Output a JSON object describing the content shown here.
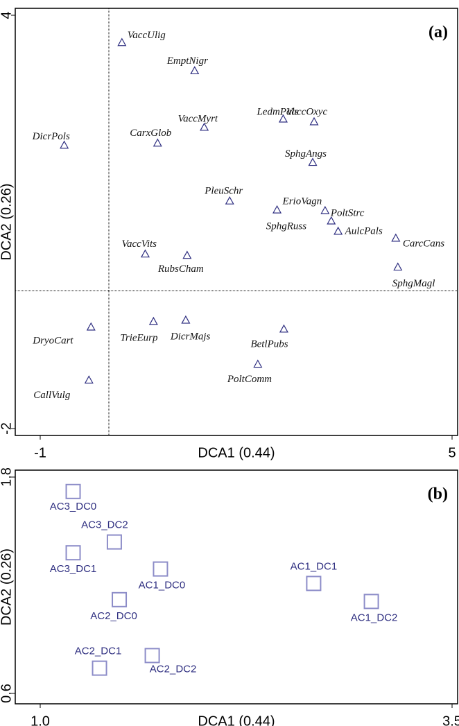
{
  "chart_data": [
    {
      "type": "scatter",
      "annotation": "(a)",
      "xlabel": "DCA1 (0.44)",
      "ylabel": "DCA2 (0.26)",
      "xlim": [
        -1,
        5
      ],
      "ylim": [
        -2,
        4
      ],
      "xticks": [
        -1,
        5
      ],
      "yticks": [
        -2,
        4
      ],
      "marker": "triangle",
      "color": "#2e2e80",
      "labels": [
        "VaccUlig",
        "EmptNigr",
        "VaccMyrt",
        "CarxGlob",
        "DicrPols",
        "VaccOxyc",
        "LedmPals",
        "SphgAngs",
        "PleuSchr",
        "ErioVagn",
        "PoltStrc",
        "SphgRuss",
        "AulcPals",
        "CarcCans",
        "SphgMagl",
        "VaccVits",
        "RubsCham",
        "DryoCart",
        "TrieEurp",
        "DicrMajs",
        "BetlPubs",
        "PoltComm",
        "CallVulg"
      ],
      "x": [
        0.19,
        1.25,
        1.39,
        0.71,
        -0.65,
        2.99,
        2.54,
        2.97,
        1.76,
        2.45,
        3.15,
        3.24,
        3.34,
        4.18,
        4.21,
        0.53,
        1.14,
        -0.26,
        0.65,
        1.12,
        2.55,
        2.17,
        -0.29
      ],
      "values": [
        3.6,
        3.19,
        2.37,
        2.14,
        2.11,
        2.45,
        2.49,
        1.86,
        1.3,
        1.17,
        1.16,
        1.01,
        0.86,
        0.76,
        0.34,
        0.53,
        0.51,
        -0.53,
        -0.45,
        -0.43,
        -0.56,
        -1.07,
        -1.3
      ]
    },
    {
      "type": "scatter",
      "annotation": "(b)",
      "xlabel": "DCA1 (0.44)",
      "ylabel": "DCA2 (0.26)",
      "xlim": [
        1,
        3.5
      ],
      "ylim": [
        0.6,
        1.8
      ],
      "xticks": [
        {
          "value": 1,
          "label": "1.0"
        },
        3.5
      ],
      "yticks": [
        0.6,
        1.8
      ],
      "marker": "square",
      "color": "#8c8cc8",
      "labels": [
        "AC3_DC0",
        "AC3_DC2",
        "AC3_DC1",
        "AC1_DC0",
        "AC2_DC0",
        "AC1_DC1",
        "AC1_DC2",
        "AC2_DC2",
        "AC2_DC1"
      ],
      "x": [
        1.2,
        1.45,
        1.2,
        1.73,
        1.48,
        2.66,
        3.01,
        1.68,
        1.36
      ],
      "values": [
        1.72,
        1.44,
        1.38,
        1.29,
        1.12,
        1.21,
        1.11,
        0.81,
        0.74
      ]
    }
  ]
}
